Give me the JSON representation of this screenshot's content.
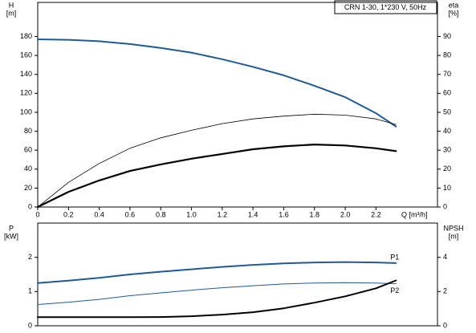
{
  "chart_data": [
    {
      "type": "line",
      "title": "CRN 1-30, 1*230 V, 50Hz",
      "x_label": "Q [m³/h]",
      "y_label": [
        "H",
        "[m]"
      ],
      "y2_label": [
        "eta",
        "[%]"
      ],
      "x": [
        0,
        0.2,
        0.4,
        0.6,
        0.8,
        1.0,
        1.2,
        1.4,
        1.6,
        1.8,
        2.0,
        2.2,
        2.33
      ],
      "xlim": [
        0,
        2.6
      ],
      "xticks": [
        0,
        0.2,
        0.4,
        0.6,
        0.8,
        {
          "value": 1,
          "label": "1.0"
        },
        1.2,
        1.4,
        1.6,
        1.8,
        {
          "value": 2,
          "label": "2.0"
        },
        2.2
      ],
      "ylim": [
        0,
        216
      ],
      "yticks": [
        0,
        20,
        40,
        60,
        80,
        100,
        120,
        140,
        160,
        180
      ],
      "y2lim": [
        0,
        108
      ],
      "y2ticks": [
        0,
        10,
        20,
        30,
        40,
        50,
        60,
        70,
        80,
        90
      ],
      "series": [
        {
          "color": "#1f5a96",
          "line_width": 2,
          "values": [
            177,
            176.5,
            175,
            172,
            168,
            163,
            156,
            148,
            139,
            128,
            116,
            99,
            85
          ]
        },
        {
          "color": "#000000",
          "line_width": 0.8,
          "axis": "y2",
          "values": [
            0,
            13,
            23,
            31,
            36.5,
            40.5,
            44,
            46.5,
            48,
            49,
            48.5,
            46.5,
            43.5
          ]
        },
        {
          "color": "#000000",
          "line_width": 2.2,
          "axis": "y2",
          "values": [
            0,
            8,
            14,
            19,
            22.5,
            25.5,
            28,
            30.5,
            32,
            33,
            32.5,
            31,
            29.5
          ]
        }
      ]
    },
    {
      "type": "line",
      "y_label": [
        "P",
        "[kW]"
      ],
      "y2_label": [
        "NPSH",
        "[m]"
      ],
      "x": [
        0,
        0.2,
        0.4,
        0.6,
        0.8,
        1.0,
        1.2,
        1.4,
        1.6,
        1.8,
        2.0,
        2.2,
        2.33
      ],
      "xlim": [
        0,
        2.6
      ],
      "ylim": [
        0,
        3
      ],
      "yticks": [
        0,
        1,
        2
      ],
      "y2lim": [
        0,
        6
      ],
      "y2ticks": [
        0,
        2,
        4
      ],
      "series": [
        {
          "name": "P1",
          "color": "#1f5a96",
          "line_width": 2,
          "values": [
            1.25,
            1.32,
            1.4,
            1.5,
            1.58,
            1.65,
            1.72,
            1.78,
            1.82,
            1.85,
            1.86,
            1.85,
            1.83
          ]
        },
        {
          "name": "P2",
          "color": "#1f5a96",
          "line_width": 1,
          "values": [
            0.62,
            0.69,
            0.77,
            0.88,
            0.96,
            1.04,
            1.11,
            1.17,
            1.22,
            1.25,
            1.26,
            1.25,
            1.23
          ]
        },
        {
          "color": "#000000",
          "line_width": 2,
          "axis": "y2",
          "values": [
            0.5,
            0.5,
            0.5,
            0.5,
            0.51,
            0.56,
            0.65,
            0.79,
            1.02,
            1.35,
            1.72,
            2.19,
            2.65
          ]
        }
      ]
    }
  ]
}
